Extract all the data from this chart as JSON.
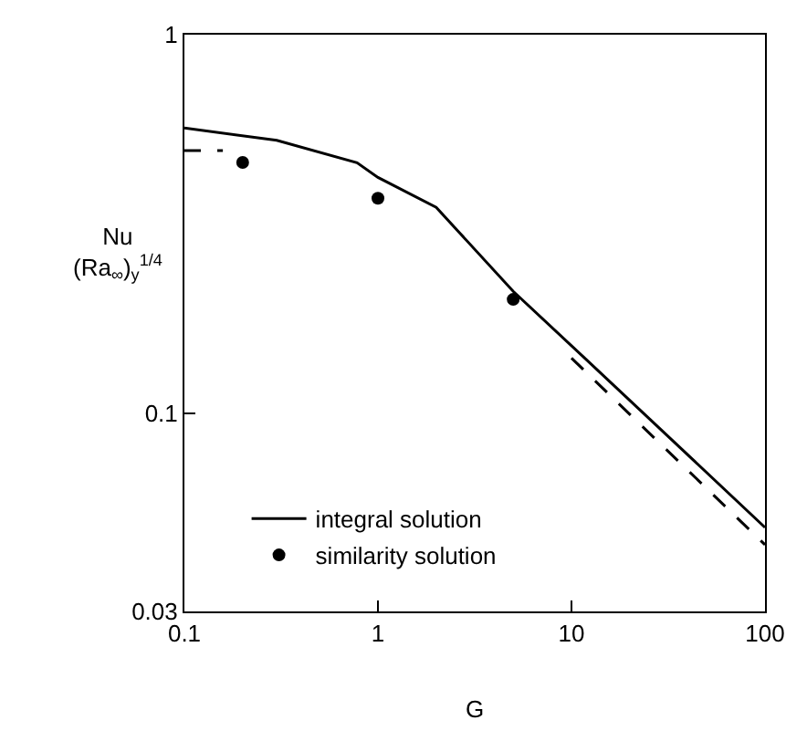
{
  "chart_data": {
    "type": "line",
    "xlabel": "G",
    "ylabel": "Nu\n(Ra$_{∞}$)$_{y}$$^{1/4}$",
    "log": "xy",
    "xlim": [
      0.1,
      100
    ],
    "ylim": [
      0.03,
      1
    ],
    "xticks": [
      0.1,
      1,
      10,
      100
    ],
    "yticks": [
      0.03,
      0.1,
      1
    ],
    "legend": "bottom left",
    "series": [
      {
        "name": "integral solution",
        "color": "#000000",
        "line_style": "solid",
        "marker": "none",
        "x": [
          0.1,
          0.3,
          0.78,
          1,
          2,
          5,
          11.7,
          100
        ],
        "values": [
          0.567,
          0.526,
          0.459,
          0.42,
          0.35,
          0.21,
          0.14,
          0.05
        ]
      },
      {
        "name": "similarity solution",
        "type": "scatter",
        "color": "#000000",
        "marker": "circle",
        "x": [
          0.2,
          1,
          5
        ],
        "values": [
          0.46,
          0.37,
          0.2
        ]
      },
      {
        "color": "#000000",
        "line_style": "dashed",
        "marker": "none",
        "x": [
          0.1,
          0.158
        ],
        "values": [
          0.494,
          0.494
        ]
      },
      {
        "color": "#000000",
        "line_style": "dashed",
        "marker": "none",
        "x": [
          10,
          100
        ],
        "values": [
          0.14,
          0.045
        ]
      }
    ]
  }
}
